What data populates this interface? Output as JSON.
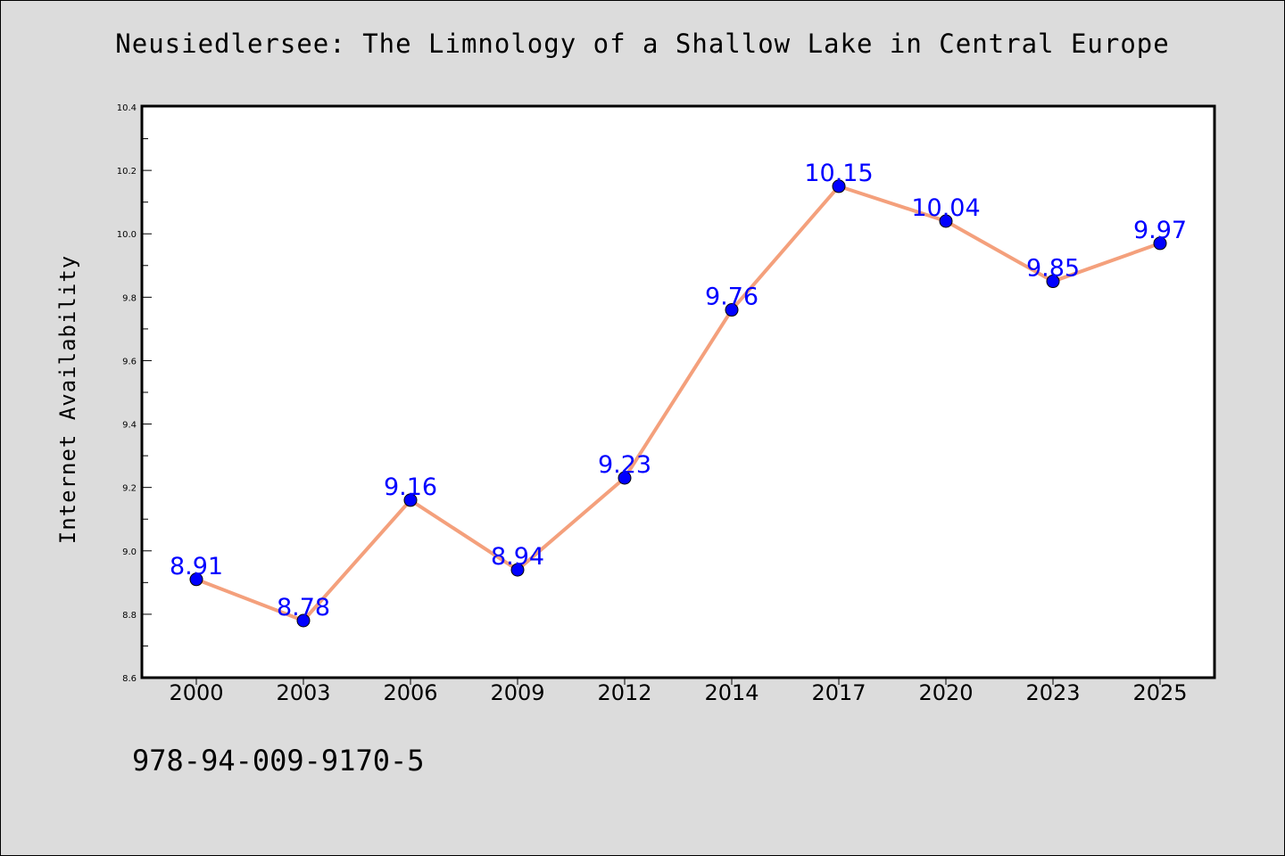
{
  "chart_data": {
    "type": "line",
    "title": "Neusiedlersee: The Limnology of a Shallow Lake in Central Europe",
    "xlabel": "",
    "ylabel": "Internet Availability",
    "categories": [
      "2000",
      "2003",
      "2006",
      "2009",
      "2012",
      "2014",
      "2017",
      "2020",
      "2023",
      "2025"
    ],
    "values": [
      8.91,
      8.78,
      9.16,
      8.94,
      9.23,
      9.76,
      10.15,
      10.04,
      9.85,
      9.97
    ],
    "data_labels": [
      "8.91",
      "8.78",
      "9.16",
      "8.94",
      "9.23",
      "9.76",
      "10.15",
      "10.04",
      "9.85",
      "9.97"
    ],
    "ylim": [
      8.6,
      10.4
    ],
    "yticks": [
      "8.6",
      "8.8",
      "9.0",
      "9.2",
      "9.4",
      "9.6",
      "9.8",
      "10.0",
      "10.2",
      "10.4"
    ],
    "grid": false,
    "line_color": "#f4a07c",
    "marker_color": "#0000ff",
    "label_color": "#0000ff"
  },
  "footer": {
    "isbn": "978-94-009-9170-5"
  }
}
